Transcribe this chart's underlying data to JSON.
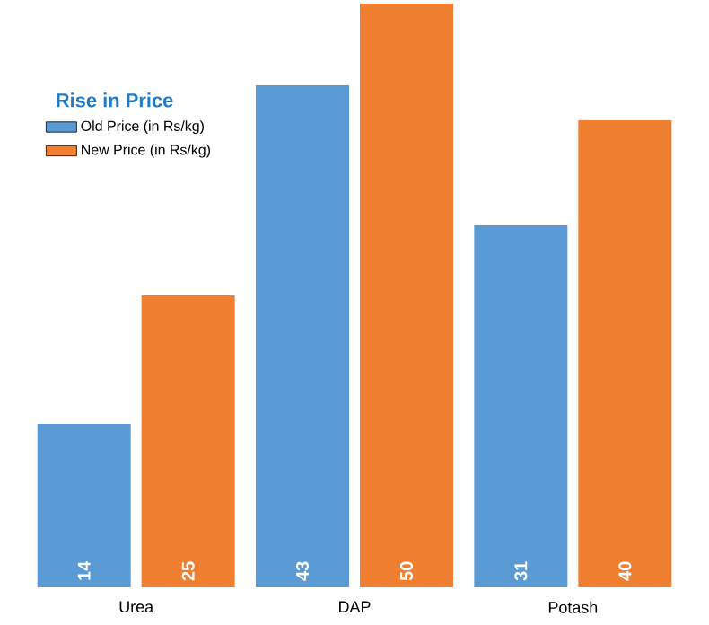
{
  "chart_data": {
    "type": "bar",
    "legend_title": "Rise in Price",
    "categories": [
      "Urea",
      "DAP",
      "Potash"
    ],
    "series": [
      {
        "name": "Old Price (in Rs/kg)",
        "color": "#5b9bd5",
        "values": [
          14,
          43,
          31
        ]
      },
      {
        "name": "New Price (in Rs/kg)",
        "color": "#f08030",
        "values": [
          25,
          50,
          40
        ]
      }
    ],
    "ylim": [
      0,
      50
    ],
    "data_labels": true,
    "legend": "top left",
    "tick_labels": "x"
  }
}
